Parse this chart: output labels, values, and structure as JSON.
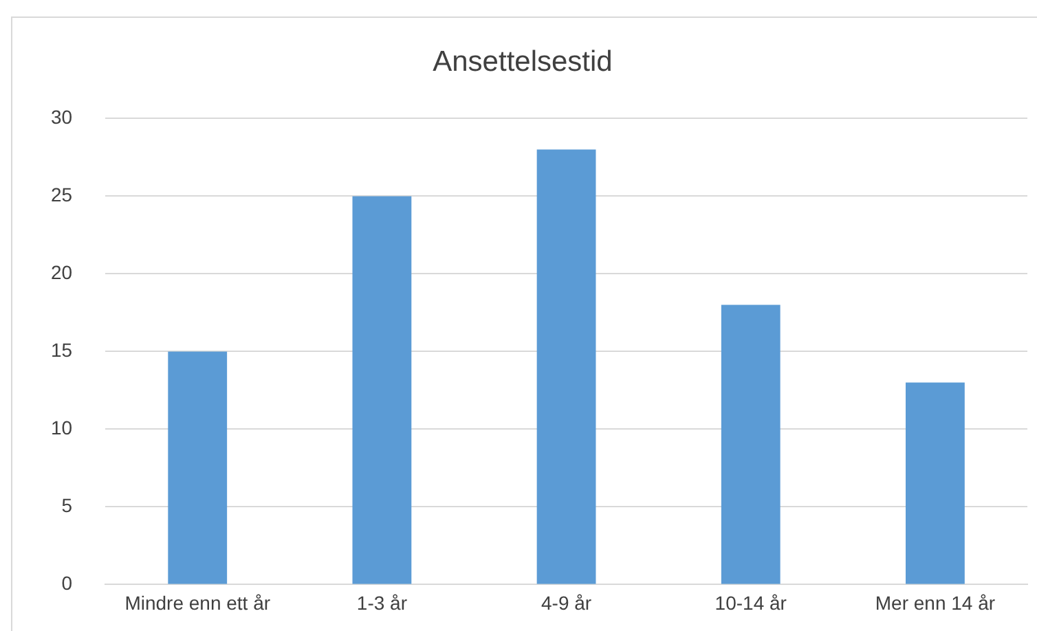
{
  "chart_data": {
    "type": "bar",
    "title": "Ansettelsestid",
    "categories": [
      "Mindre enn ett år",
      "1-3 år",
      "4-9 år",
      "10-14 år",
      "Mer enn 14 år"
    ],
    "values": [
      15,
      25,
      28,
      18,
      13
    ],
    "color": "#5b9bd5",
    "ylim": [
      0,
      30
    ],
    "yticks": [
      0,
      5,
      10,
      15,
      20,
      25,
      30
    ],
    "grid": "y"
  }
}
